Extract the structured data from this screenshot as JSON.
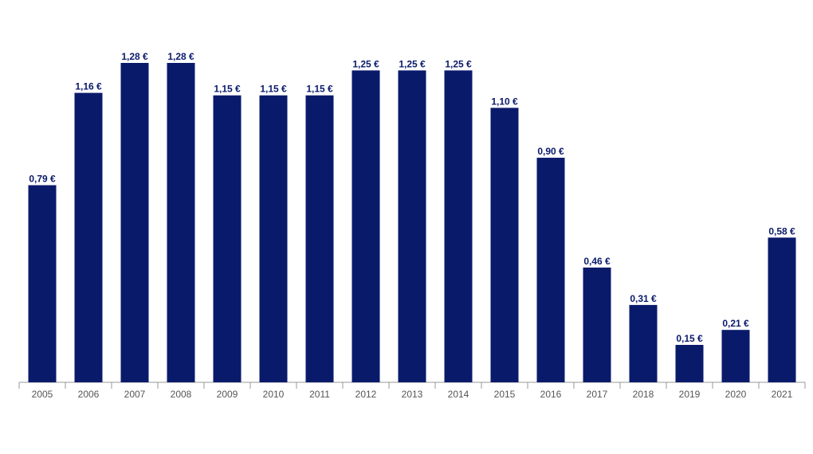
{
  "chart_data": {
    "type": "bar",
    "categories": [
      "2005",
      "2006",
      "2007",
      "2008",
      "2009",
      "2010",
      "2011",
      "2012",
      "2013",
      "2014",
      "2015",
      "2016",
      "2017",
      "2018",
      "2019",
      "2020",
      "2021"
    ],
    "values": [
      0.79,
      1.16,
      1.28,
      1.28,
      1.15,
      1.15,
      1.15,
      1.25,
      1.25,
      1.25,
      1.1,
      0.9,
      0.46,
      0.31,
      0.15,
      0.21,
      0.58
    ],
    "data_labels": [
      "0,79 €",
      "1,16 €",
      "1,28 €",
      "1,28 €",
      "1,15 €",
      "1,15 €",
      "1,15 €",
      "1,25 €",
      "1,25 €",
      "1,25 €",
      "1,10 €",
      "0,90 €",
      "0,46 €",
      "0,31 €",
      "0,15 €",
      "0,21 €",
      "0,58 €"
    ],
    "title": "",
    "xlabel": "",
    "ylabel": "",
    "ylim": [
      0,
      1.28
    ],
    "grid": false,
    "legend": "none",
    "colors": {
      "bar": "#0a1a6b",
      "data_label": "#0a1a6b",
      "axis": "#999999",
      "tick_label": "#555555"
    }
  }
}
